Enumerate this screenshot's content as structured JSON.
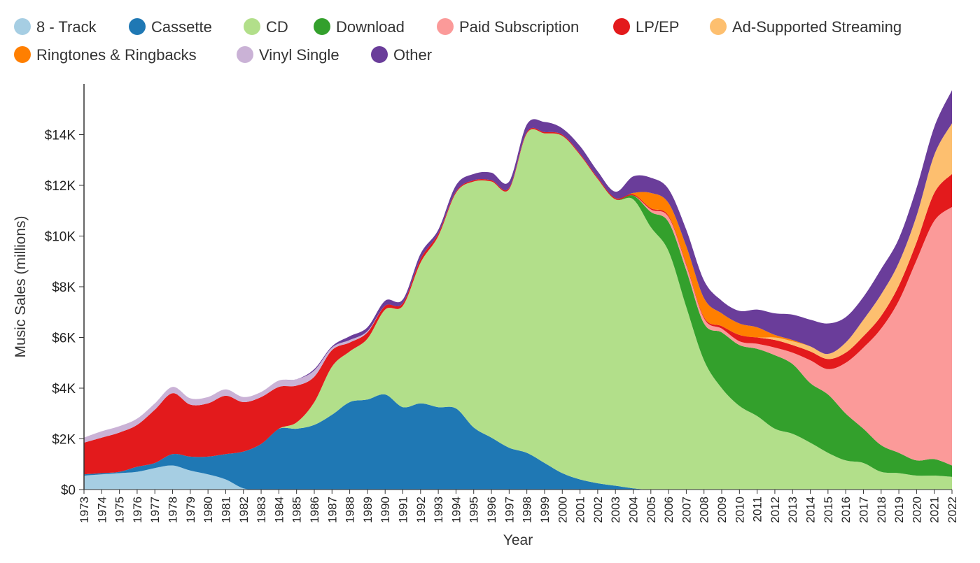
{
  "chart_data": {
    "type": "area",
    "stacked": true,
    "title": "",
    "xlabel": "Year",
    "ylabel": "Music Sales (millions)",
    "ylim": [
      0,
      16000
    ],
    "yticks": [
      0,
      2000,
      4000,
      6000,
      8000,
      10000,
      12000,
      14000
    ],
    "ytick_labels": [
      "$0",
      "$2K",
      "$4K",
      "$6K",
      "$8K",
      "$10K",
      "$12K",
      "$14K"
    ],
    "legend_position": "top",
    "categories": [
      "1973",
      "1974",
      "1975",
      "1976",
      "1977",
      "1978",
      "1979",
      "1980",
      "1981",
      "1982",
      "1983",
      "1984",
      "1985",
      "1986",
      "1987",
      "1988",
      "1989",
      "1990",
      "1991",
      "1992",
      "1993",
      "1994",
      "1995",
      "1996",
      "1997",
      "1998",
      "1999",
      "2000",
      "2001",
      "2002",
      "2003",
      "2004",
      "2005",
      "2006",
      "2007",
      "2008",
      "2009",
      "2010",
      "2011",
      "2012",
      "2013",
      "2014",
      "2015",
      "2016",
      "2017",
      "2018",
      "2019",
      "2020",
      "2021",
      "2022"
    ],
    "series": [
      {
        "name": "8 - Track",
        "color": "#a6cee3",
        "values": [
          550,
          600,
          650,
          700,
          850,
          950,
          750,
          600,
          400,
          50,
          0,
          0,
          0,
          0,
          0,
          0,
          0,
          0,
          0,
          0,
          0,
          0,
          0,
          0,
          0,
          0,
          0,
          0,
          0,
          0,
          0,
          0,
          0,
          0,
          0,
          0,
          0,
          0,
          0,
          0,
          0,
          0,
          0,
          0,
          0,
          0,
          0,
          0,
          0,
          0
        ]
      },
      {
        "name": "Cassette",
        "color": "#1f78b4",
        "values": [
          50,
          50,
          50,
          200,
          200,
          450,
          550,
          700,
          1000,
          1450,
          1800,
          2400,
          2400,
          2550,
          2950,
          3450,
          3550,
          3750,
          3250,
          3400,
          3250,
          3200,
          2450,
          2050,
          1650,
          1450,
          1050,
          650,
          400,
          250,
          150,
          50,
          0,
          0,
          0,
          0,
          0,
          0,
          0,
          0,
          0,
          0,
          0,
          0,
          0,
          0,
          0,
          0,
          0,
          0
        ]
      },
      {
        "name": "CD",
        "color": "#b2df8a",
        "values": [
          0,
          0,
          0,
          0,
          0,
          0,
          0,
          0,
          0,
          0,
          0,
          0,
          250,
          900,
          1900,
          2000,
          2400,
          3350,
          4000,
          5550,
          6750,
          8500,
          9700,
          10100,
          10200,
          12600,
          13000,
          13300,
          12800,
          12000,
          11300,
          11400,
          10350,
          9400,
          7200,
          5100,
          4000,
          3300,
          2900,
          2400,
          2200,
          1850,
          1450,
          1150,
          1050,
          700,
          650,
          550,
          550,
          500
        ]
      },
      {
        "name": "Download",
        "color": "#33a02c",
        "values": [
          0,
          0,
          0,
          0,
          0,
          0,
          0,
          0,
          0,
          0,
          0,
          0,
          0,
          0,
          0,
          0,
          0,
          0,
          0,
          0,
          0,
          0,
          0,
          0,
          0,
          0,
          0,
          0,
          0,
          0,
          0,
          150,
          600,
          1150,
          1450,
          1450,
          2200,
          2400,
          2650,
          2900,
          2750,
          2350,
          2300,
          1850,
          1350,
          1050,
          800,
          600,
          650,
          450
        ]
      },
      {
        "name": "Paid Subscription",
        "color": "#fb9a99",
        "values": [
          0,
          0,
          0,
          0,
          0,
          0,
          0,
          0,
          0,
          0,
          0,
          0,
          0,
          0,
          0,
          0,
          0,
          0,
          0,
          0,
          0,
          0,
          0,
          0,
          0,
          0,
          0,
          0,
          0,
          0,
          0,
          0,
          100,
          200,
          200,
          200,
          150,
          150,
          200,
          300,
          450,
          900,
          1000,
          2000,
          3200,
          4600,
          6000,
          7900,
          9400,
          10200
        ]
      },
      {
        "name": "LP/EP",
        "color": "#e31a1c",
        "values": [
          1250,
          1400,
          1550,
          1650,
          2100,
          2400,
          2050,
          2100,
          2300,
          1950,
          1850,
          1650,
          1450,
          1000,
          650,
          350,
          250,
          150,
          100,
          150,
          100,
          50,
          50,
          50,
          50,
          50,
          50,
          50,
          50,
          50,
          50,
          50,
          50,
          50,
          50,
          50,
          100,
          250,
          250,
          300,
          300,
          350,
          400,
          400,
          450,
          500,
          600,
          700,
          1100,
          1300
        ]
      },
      {
        "name": "Ad-Supported Streaming",
        "color": "#fdbf6f",
        "values": [
          0,
          0,
          0,
          0,
          0,
          0,
          0,
          0,
          0,
          0,
          0,
          0,
          0,
          0,
          0,
          0,
          0,
          0,
          0,
          0,
          0,
          0,
          0,
          0,
          0,
          0,
          0,
          0,
          0,
          0,
          0,
          0,
          0,
          0,
          0,
          0,
          0,
          0,
          0,
          100,
          150,
          200,
          200,
          400,
          650,
          850,
          900,
          1050,
          1500,
          2000
        ]
      },
      {
        "name": "Ringtones & Ringbacks",
        "color": "#ff7f00",
        "values": [
          0,
          0,
          0,
          0,
          0,
          0,
          0,
          0,
          0,
          0,
          0,
          0,
          0,
          0,
          0,
          0,
          0,
          0,
          0,
          0,
          0,
          0,
          0,
          0,
          0,
          0,
          0,
          0,
          0,
          0,
          0,
          50,
          600,
          500,
          700,
          750,
          500,
          450,
          400,
          100,
          50,
          0,
          0,
          0,
          0,
          0,
          0,
          0,
          0,
          0
        ]
      },
      {
        "name": "Vinyl Single",
        "color": "#cab2d6",
        "values": [
          200,
          250,
          250,
          250,
          250,
          250,
          250,
          250,
          250,
          200,
          200,
          250,
          250,
          250,
          100,
          100,
          50,
          0,
          0,
          0,
          0,
          0,
          0,
          0,
          0,
          0,
          0,
          0,
          0,
          0,
          0,
          0,
          0,
          0,
          0,
          0,
          0,
          0,
          0,
          0,
          0,
          0,
          0,
          0,
          0,
          0,
          0,
          0,
          0,
          0
        ]
      },
      {
        "name": "Other",
        "color": "#6a3d9a",
        "values": [
          0,
          0,
          0,
          0,
          0,
          0,
          0,
          0,
          0,
          0,
          0,
          0,
          0,
          50,
          50,
          150,
          150,
          200,
          150,
          200,
          150,
          250,
          250,
          300,
          250,
          300,
          400,
          250,
          300,
          250,
          250,
          650,
          600,
          550,
          650,
          700,
          500,
          500,
          700,
          850,
          1000,
          1050,
          1200,
          1000,
          900,
          1000,
          950,
          1100,
          1100,
          1300
        ]
      }
    ]
  }
}
